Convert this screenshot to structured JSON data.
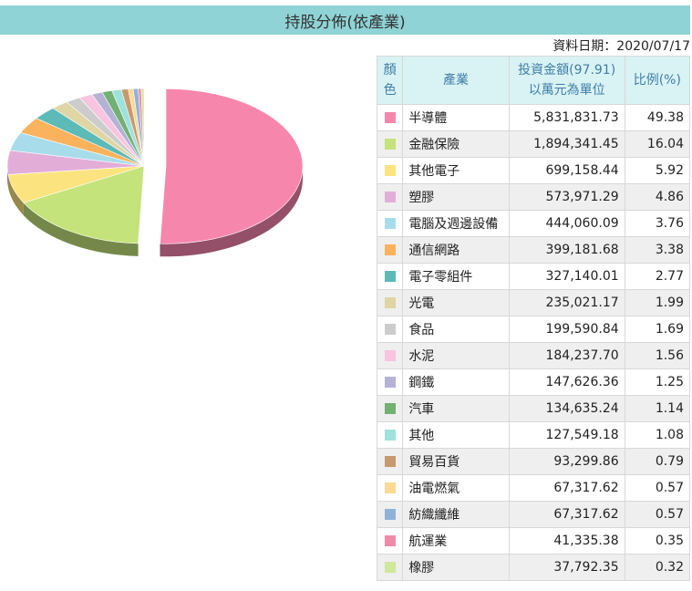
{
  "title": "持股分佈(依產業)",
  "date_label": "資料日期：2020/07/17",
  "table": {
    "headers": {
      "color": "顏色",
      "industry": "產業",
      "amount_line1": "投資金額(97.91)",
      "amount_line2": "以萬元為單位",
      "percent": "比例(%)"
    },
    "rows": [
      {
        "industry": "半導體",
        "amount": "5,831,831.73",
        "percent": "49.38",
        "color": "#f786ad"
      },
      {
        "industry": "金融保險",
        "amount": "1,894,341.45",
        "percent": "16.04",
        "color": "#c4e37a"
      },
      {
        "industry": "其他電子",
        "amount": "699,158.44",
        "percent": "5.92",
        "color": "#fbe47f"
      },
      {
        "industry": "塑膠",
        "amount": "573,971.29",
        "percent": "4.86",
        "color": "#e2aed8"
      },
      {
        "industry": "電腦及週邊設備",
        "amount": "444,060.09",
        "percent": "3.76",
        "color": "#a9dcea"
      },
      {
        "industry": "通信網路",
        "amount": "399,181.68",
        "percent": "3.38",
        "color": "#fbb25c"
      },
      {
        "industry": "電子零組件",
        "amount": "327,140.01",
        "percent": "2.77",
        "color": "#5cbab7"
      },
      {
        "industry": "光電",
        "amount": "235,021.17",
        "percent": "1.99",
        "color": "#e0d5a4"
      },
      {
        "industry": "食品",
        "amount": "199,590.84",
        "percent": "1.69",
        "color": "#cccccc"
      },
      {
        "industry": "水泥",
        "amount": "184,237.70",
        "percent": "1.56",
        "color": "#f8c4e0"
      },
      {
        "industry": "鋼鐵",
        "amount": "147,626.36",
        "percent": "1.25",
        "color": "#b4b3d6"
      },
      {
        "industry": "汽車",
        "amount": "134,635.24",
        "percent": "1.14",
        "color": "#72b073"
      },
      {
        "industry": "其他",
        "amount": "127,549.18",
        "percent": "1.08",
        "color": "#9fe1dd"
      },
      {
        "industry": "貿易百貨",
        "amount": "93,299.86",
        "percent": "0.79",
        "color": "#c69a6f"
      },
      {
        "industry": "油電燃氣",
        "amount": "67,317.62",
        "percent": "0.57",
        "color": "#fdd996"
      },
      {
        "industry": "紡織纖維",
        "amount": "67,317.62",
        "percent": "0.57",
        "color": "#8fb3d8"
      },
      {
        "industry": "航運業",
        "amount": "41,335.38",
        "percent": "0.35",
        "color": "#f28aa8"
      },
      {
        "industry": "橡膠",
        "amount": "37,792.35",
        "percent": "0.32",
        "color": "#cfe89a"
      }
    ]
  },
  "chart_data": {
    "type": "pie",
    "style": "3d, first slice exploded",
    "labels": [
      "半導體",
      "金融保險",
      "其他電子",
      "塑膠",
      "電腦及週邊設備",
      "通信網路",
      "電子零組件",
      "光電",
      "食品",
      "水泥",
      "鋼鐵",
      "汽車",
      "其他",
      "貿易百貨",
      "油電燃氣",
      "紡織纖維",
      "航運業",
      "橡膠"
    ],
    "values": [
      49.38,
      16.04,
      5.92,
      4.86,
      3.76,
      3.38,
      2.77,
      1.99,
      1.69,
      1.56,
      1.25,
      1.14,
      1.08,
      0.79,
      0.57,
      0.57,
      0.35,
      0.32
    ],
    "colors": [
      "#f786ad",
      "#c4e37a",
      "#fbe47f",
      "#e2aed8",
      "#a9dcea",
      "#fbb25c",
      "#5cbab7",
      "#e0d5a4",
      "#cccccc",
      "#f8c4e0",
      "#b4b3d6",
      "#72b073",
      "#9fe1dd",
      "#c69a6f",
      "#fdd996",
      "#8fb3d8",
      "#f28aa8",
      "#cfe89a"
    ]
  }
}
